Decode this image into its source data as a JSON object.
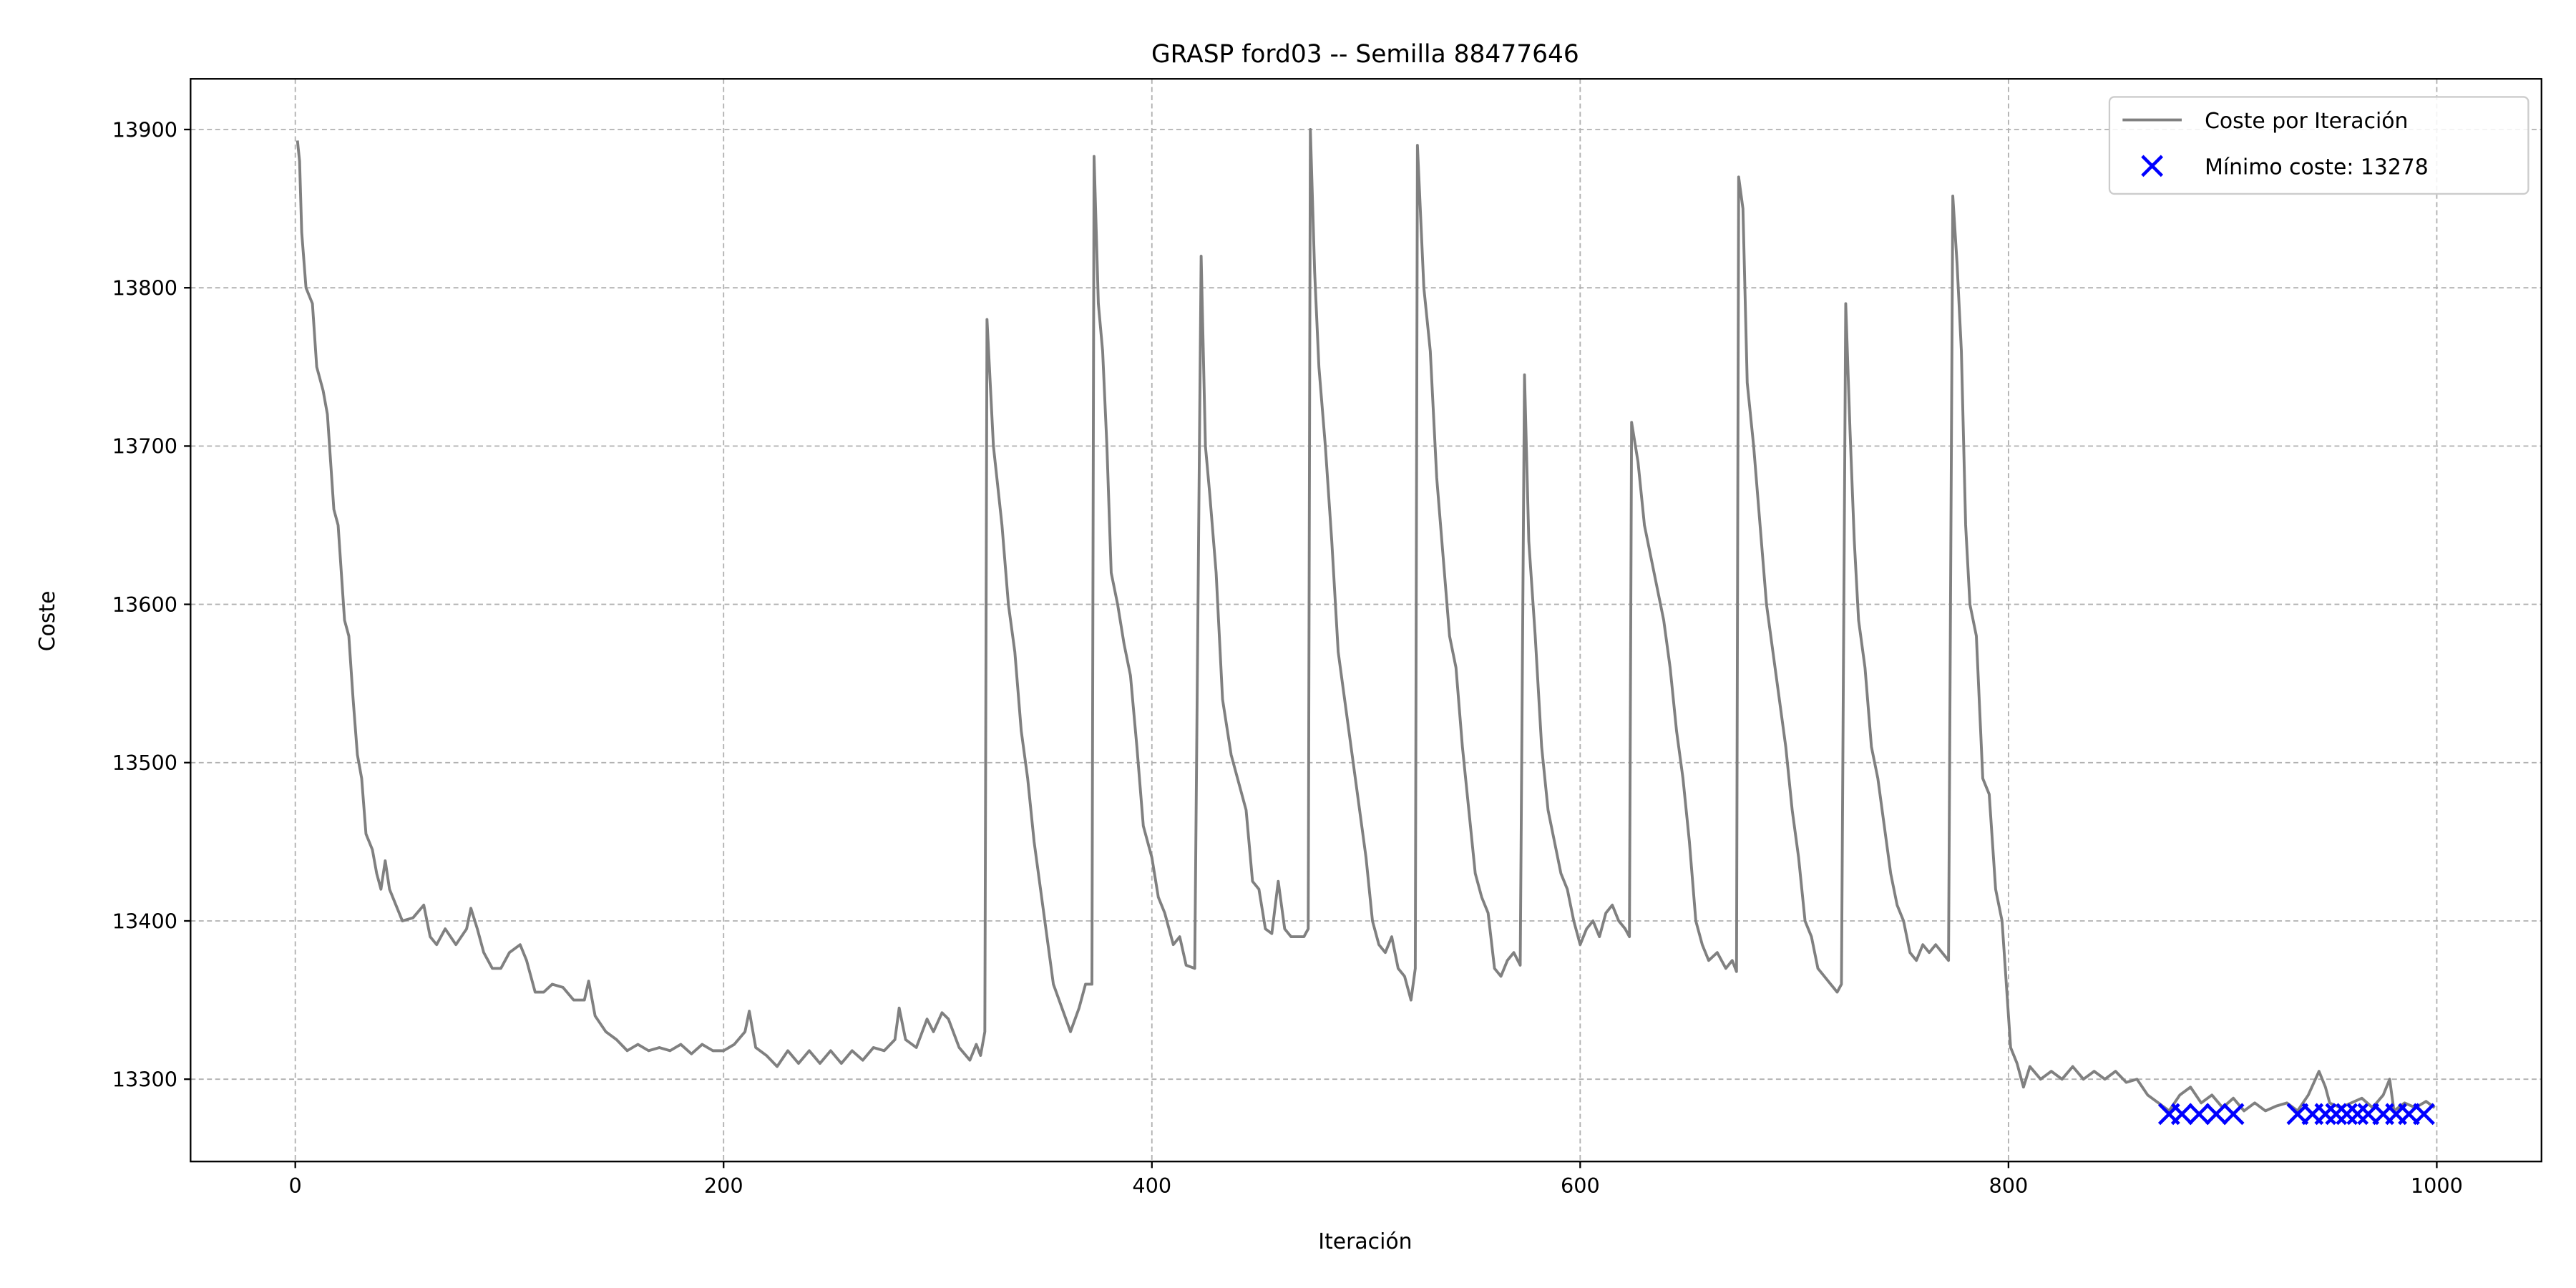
{
  "chart_data": {
    "type": "line",
    "title": "GRASP ford03 -- Semilla 88477646",
    "xlabel": "Iteración",
    "ylabel": "Coste",
    "xlim": [
      -48.9,
      1048.9
    ],
    "ylim": [
      13248,
      13932
    ],
    "xticks": [
      0,
      200,
      400,
      600,
      800,
      1000
    ],
    "yticks": [
      13300,
      13400,
      13500,
      13600,
      13700,
      13800,
      13900
    ],
    "grid": true,
    "legend": "upper right",
    "series": [
      {
        "name": "Coste por Iteración",
        "type": "line",
        "color": "#808080",
        "x": [
          1,
          2,
          3,
          5,
          8,
          10,
          13,
          15,
          18,
          20,
          23,
          25,
          27,
          29,
          31,
          33,
          36,
          38,
          40,
          42,
          44,
          47,
          50,
          55,
          60,
          63,
          66,
          70,
          75,
          80,
          82,
          85,
          88,
          92,
          96,
          100,
          105,
          108,
          112,
          116,
          120,
          125,
          130,
          135,
          137,
          140,
          145,
          150,
          155,
          160,
          165,
          170,
          175,
          180,
          185,
          190,
          195,
          200,
          205,
          210,
          212,
          215,
          220,
          225,
          230,
          235,
          240,
          245,
          250,
          255,
          260,
          265,
          270,
          275,
          280,
          282,
          285,
          290,
          295,
          298,
          302,
          305,
          310,
          315,
          318,
          320,
          322,
          323,
          326,
          330,
          333,
          336,
          339,
          342,
          345,
          348,
          351,
          354,
          358,
          362,
          366,
          369,
          372,
          373,
          375,
          377,
          379,
          381,
          384,
          387,
          390,
          393,
          396,
          400,
          403,
          406,
          410,
          413,
          416,
          420,
          423,
          425,
          427,
          430,
          433,
          437,
          440,
          444,
          447,
          450,
          453,
          456,
          459,
          462,
          465,
          468,
          471,
          473,
          474,
          476,
          478,
          481,
          484,
          487,
          490,
          494,
          497,
          500,
          503,
          506,
          509,
          512,
          515,
          518,
          521,
          523,
          524,
          527,
          530,
          533,
          536,
          539,
          542,
          545,
          548,
          551,
          554,
          557,
          560,
          563,
          566,
          569,
          572,
          574,
          576,
          579,
          582,
          585,
          588,
          591,
          594,
          597,
          600,
          603,
          606,
          609,
          612,
          615,
          618,
          621,
          623,
          624,
          627,
          630,
          633,
          636,
          639,
          642,
          645,
          648,
          651,
          654,
          657,
          660,
          664,
          668,
          671,
          673,
          674,
          676,
          678,
          681,
          684,
          687,
          690,
          693,
          696,
          699,
          702,
          705,
          708,
          711,
          714,
          717,
          720,
          722,
          724,
          726,
          728,
          730,
          733,
          736,
          739,
          742,
          745,
          748,
          751,
          754,
          757,
          760,
          763,
          766,
          769,
          772,
          774,
          776,
          778,
          780,
          782,
          785,
          788,
          791,
          794,
          797,
          799,
          801,
          804,
          807,
          810,
          815,
          820,
          825,
          830,
          835,
          840,
          845,
          850,
          855,
          860,
          865,
          870,
          875,
          880,
          885,
          890,
          895,
          900,
          905,
          910,
          915,
          920,
          925,
          930,
          935,
          940,
          945,
          948,
          950,
          955,
          960,
          965,
          970,
          975,
          978,
          980,
          985,
          990,
          995,
          999
        ],
        "values": [
          13893,
          13880,
          13835,
          13800,
          13790,
          13750,
          13735,
          13720,
          13660,
          13650,
          13590,
          13580,
          13540,
          13505,
          13490,
          13455,
          13445,
          13430,
          13420,
          13438,
          13420,
          13410,
          13400,
          13402,
          13410,
          13390,
          13385,
          13395,
          13385,
          13395,
          13408,
          13395,
          13380,
          13370,
          13370,
          13380,
          13385,
          13375,
          13355,
          13355,
          13360,
          13358,
          13350,
          13350,
          13362,
          13340,
          13330,
          13325,
          13318,
          13322,
          13318,
          13320,
          13318,
          13322,
          13316,
          13322,
          13318,
          13318,
          13322,
          13330,
          13343,
          13320,
          13315,
          13308,
          13318,
          13310,
          13318,
          13310,
          13318,
          13310,
          13318,
          13312,
          13320,
          13318,
          13325,
          13345,
          13325,
          13320,
          13338,
          13330,
          13342,
          13338,
          13320,
          13312,
          13322,
          13315,
          13330,
          13780,
          13700,
          13650,
          13600,
          13570,
          13520,
          13490,
          13450,
          13420,
          13390,
          13360,
          13345,
          13330,
          13345,
          13360,
          13360,
          13883,
          13790,
          13760,
          13700,
          13620,
          13600,
          13575,
          13555,
          13510,
          13460,
          13440,
          13415,
          13405,
          13385,
          13390,
          13372,
          13370,
          13820,
          13700,
          13670,
          13620,
          13540,
          13505,
          13490,
          13470,
          13425,
          13420,
          13395,
          13392,
          13425,
          13395,
          13390,
          13390,
          13390,
          13395,
          13900,
          13810,
          13750,
          13700,
          13640,
          13570,
          13540,
          13500,
          13470,
          13440,
          13400,
          13385,
          13380,
          13390,
          13370,
          13365,
          13350,
          13370,
          13890,
          13800,
          13760,
          13680,
          13630,
          13580,
          13560,
          13510,
          13470,
          13430,
          13415,
          13405,
          13370,
          13365,
          13375,
          13380,
          13372,
          13745,
          13640,
          13580,
          13510,
          13470,
          13450,
          13430,
          13420,
          13400,
          13385,
          13395,
          13400,
          13390,
          13405,
          13410,
          13400,
          13395,
          13390,
          13715,
          13690,
          13650,
          13630,
          13610,
          13590,
          13560,
          13520,
          13490,
          13450,
          13400,
          13385,
          13375,
          13380,
          13370,
          13375,
          13368,
          13870,
          13850,
          13740,
          13700,
          13650,
          13600,
          13570,
          13540,
          13510,
          13470,
          13440,
          13400,
          13390,
          13370,
          13365,
          13360,
          13355,
          13360,
          13790,
          13710,
          13640,
          13590,
          13560,
          13510,
          13490,
          13460,
          13430,
          13410,
          13400,
          13380,
          13375,
          13385,
          13380,
          13385,
          13380,
          13375,
          13858,
          13815,
          13760,
          13650,
          13600,
          13580,
          13490,
          13480,
          13420,
          13400,
          13360,
          13320,
          13310,
          13295,
          13308,
          13300,
          13305,
          13300,
          13308,
          13300,
          13305,
          13300,
          13305,
          13298,
          13300,
          13290,
          13285,
          13280,
          13290,
          13295,
          13285,
          13290,
          13282,
          13288,
          13280,
          13285,
          13280,
          13283,
          13285,
          13280,
          13290,
          13305,
          13295,
          13285,
          13282,
          13285,
          13288,
          13282,
          13290,
          13300,
          13280,
          13285,
          13282,
          13286,
          13282
        ]
      },
      {
        "name": "Mínimo coste: 13278",
        "type": "scatter",
        "marker": "x",
        "color": "#0000ff",
        "x": [
          875,
          881,
          889,
          897,
          905,
          935,
          942,
          948,
          953,
          958,
          963,
          968,
          975,
          981,
          987,
          994
        ],
        "values": [
          13278,
          13278,
          13278,
          13278,
          13278,
          13278,
          13278,
          13278,
          13278,
          13278,
          13278,
          13278,
          13278,
          13278,
          13278,
          13278
        ]
      }
    ]
  }
}
